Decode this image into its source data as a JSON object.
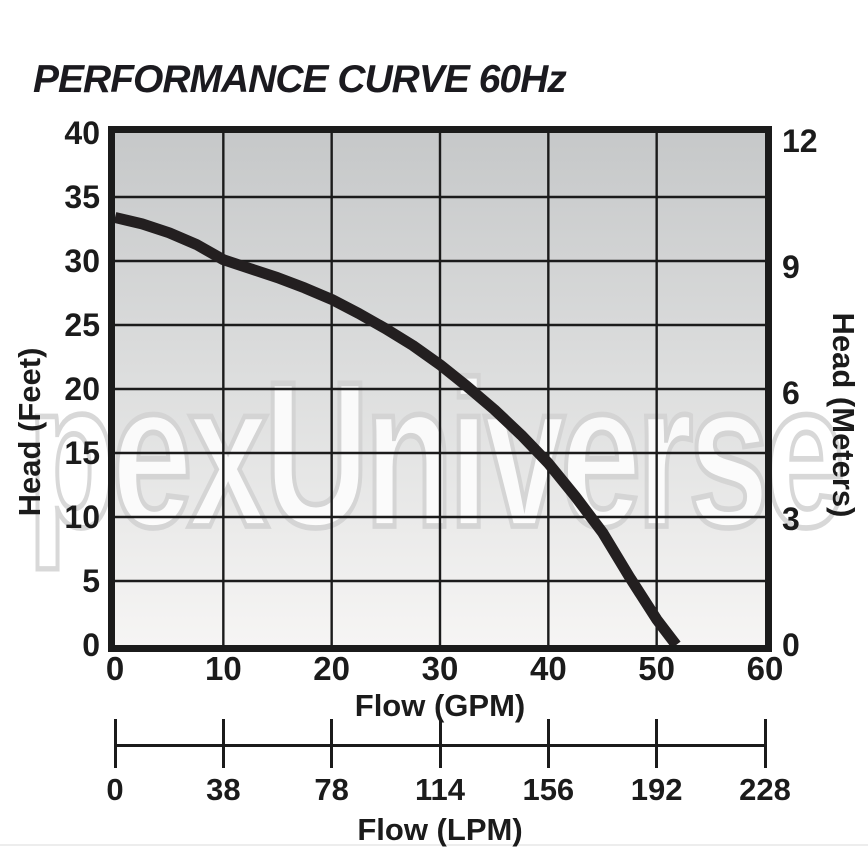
{
  "title": "PERFORMANCE CURVE 60Hz",
  "watermark": "pexUniverse",
  "chart_data": {
    "type": "line",
    "title": "PERFORMANCE CURVE 60Hz",
    "grid": true,
    "legend": "none",
    "x_axis": {
      "label": "Flow (GPM)",
      "min": 0,
      "max": 60,
      "ticks": [
        0,
        10,
        20,
        30,
        40,
        50,
        60
      ]
    },
    "y_axis": {
      "label": "Head (Feet)",
      "min": 0,
      "max": 40,
      "ticks": [
        0,
        5,
        10,
        15,
        20,
        25,
        30,
        35,
        40
      ]
    },
    "y2_axis": {
      "label": "Head (Meters)",
      "unit_ticks": [
        0,
        3,
        6,
        9,
        12
      ],
      "feet_per_meter": 3.28084
    },
    "x2_axis": {
      "label": "Flow (LPM)",
      "tick_labels": [
        0,
        38,
        78,
        114,
        156,
        192,
        228
      ]
    },
    "series": [
      {
        "name": "pump-performance-curve-60hz",
        "points_gpm_feet": [
          [
            0,
            33.4
          ],
          [
            2.5,
            32.9
          ],
          [
            5,
            32.2
          ],
          [
            7.5,
            31.3
          ],
          [
            10,
            30.1
          ],
          [
            12.5,
            29.4
          ],
          [
            15,
            28.7
          ],
          [
            17.5,
            27.9
          ],
          [
            20,
            27.0
          ],
          [
            22.5,
            25.9
          ],
          [
            25,
            24.7
          ],
          [
            27.5,
            23.4
          ],
          [
            30,
            21.9
          ],
          [
            32.5,
            20.2
          ],
          [
            35,
            18.4
          ],
          [
            37.5,
            16.4
          ],
          [
            40,
            14.2
          ],
          [
            42.5,
            11.6
          ],
          [
            45,
            8.8
          ],
          [
            47.5,
            5.3
          ],
          [
            50,
            2.0
          ],
          [
            51.8,
            0
          ]
        ]
      }
    ],
    "colors": {
      "curve": "#231f20",
      "grid": "#1b1b1b",
      "frame": "#1b1b1b",
      "text": "#1b1b1b",
      "plot_bg_top": "#c6c8c9",
      "plot_bg_bottom": "#f6f5f4",
      "watermark_outline": "#d2d2d2",
      "watermark_fill": "#ffffff"
    }
  }
}
